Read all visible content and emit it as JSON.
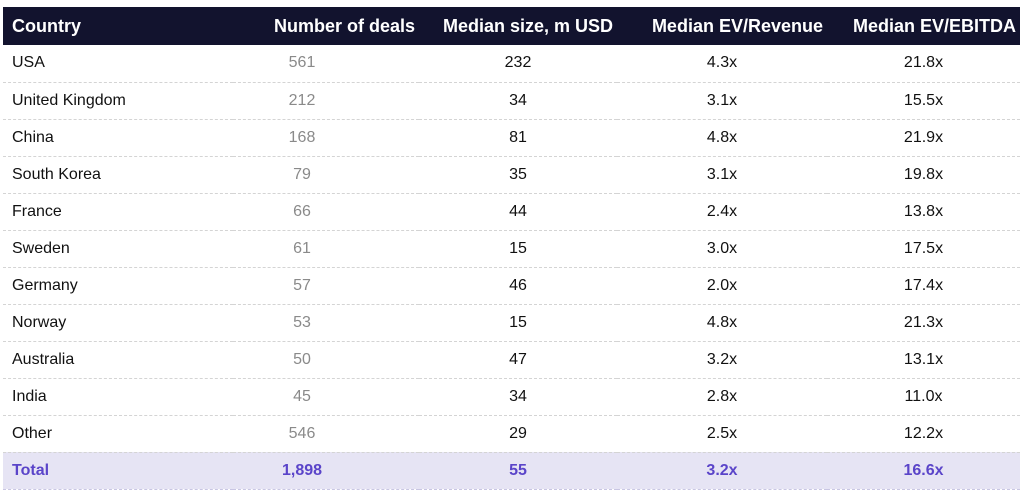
{
  "chart_data": {
    "type": "table",
    "columns": [
      "Country",
      "Number of deals",
      "Median size, m USD",
      "Median EV/Revenue",
      "Median EV/EBITDA"
    ],
    "rows": [
      [
        "USA",
        "561",
        "232",
        "4.3x",
        "21.8x"
      ],
      [
        "United Kingdom",
        "212",
        "34",
        "3.1x",
        "15.5x"
      ],
      [
        "China",
        "168",
        "81",
        "4.8x",
        "21.9x"
      ],
      [
        "South Korea",
        "79",
        "35",
        "3.1x",
        "19.8x"
      ],
      [
        "France",
        "66",
        "44",
        "2.4x",
        "13.8x"
      ],
      [
        "Sweden",
        "61",
        "15",
        "3.0x",
        "17.5x"
      ],
      [
        "Germany",
        "57",
        "46",
        "2.0x",
        "17.4x"
      ],
      [
        "Norway",
        "53",
        "15",
        "4.8x",
        "21.3x"
      ],
      [
        "Australia",
        "50",
        "47",
        "3.2x",
        "13.1x"
      ],
      [
        "India",
        "45",
        "34",
        "2.8x",
        "11.0x"
      ],
      [
        "Other",
        "546",
        "29",
        "2.5x",
        "12.2x"
      ]
    ],
    "total": [
      "Total",
      "1,898",
      "55",
      "3.2x",
      "16.6x"
    ],
    "colors": {
      "header_bg": "#12132e",
      "header_text": "#ffffff",
      "total_bg": "#e6e4f4",
      "total_text": "#5a44c9",
      "deals_text": "#8a8a8a"
    }
  }
}
